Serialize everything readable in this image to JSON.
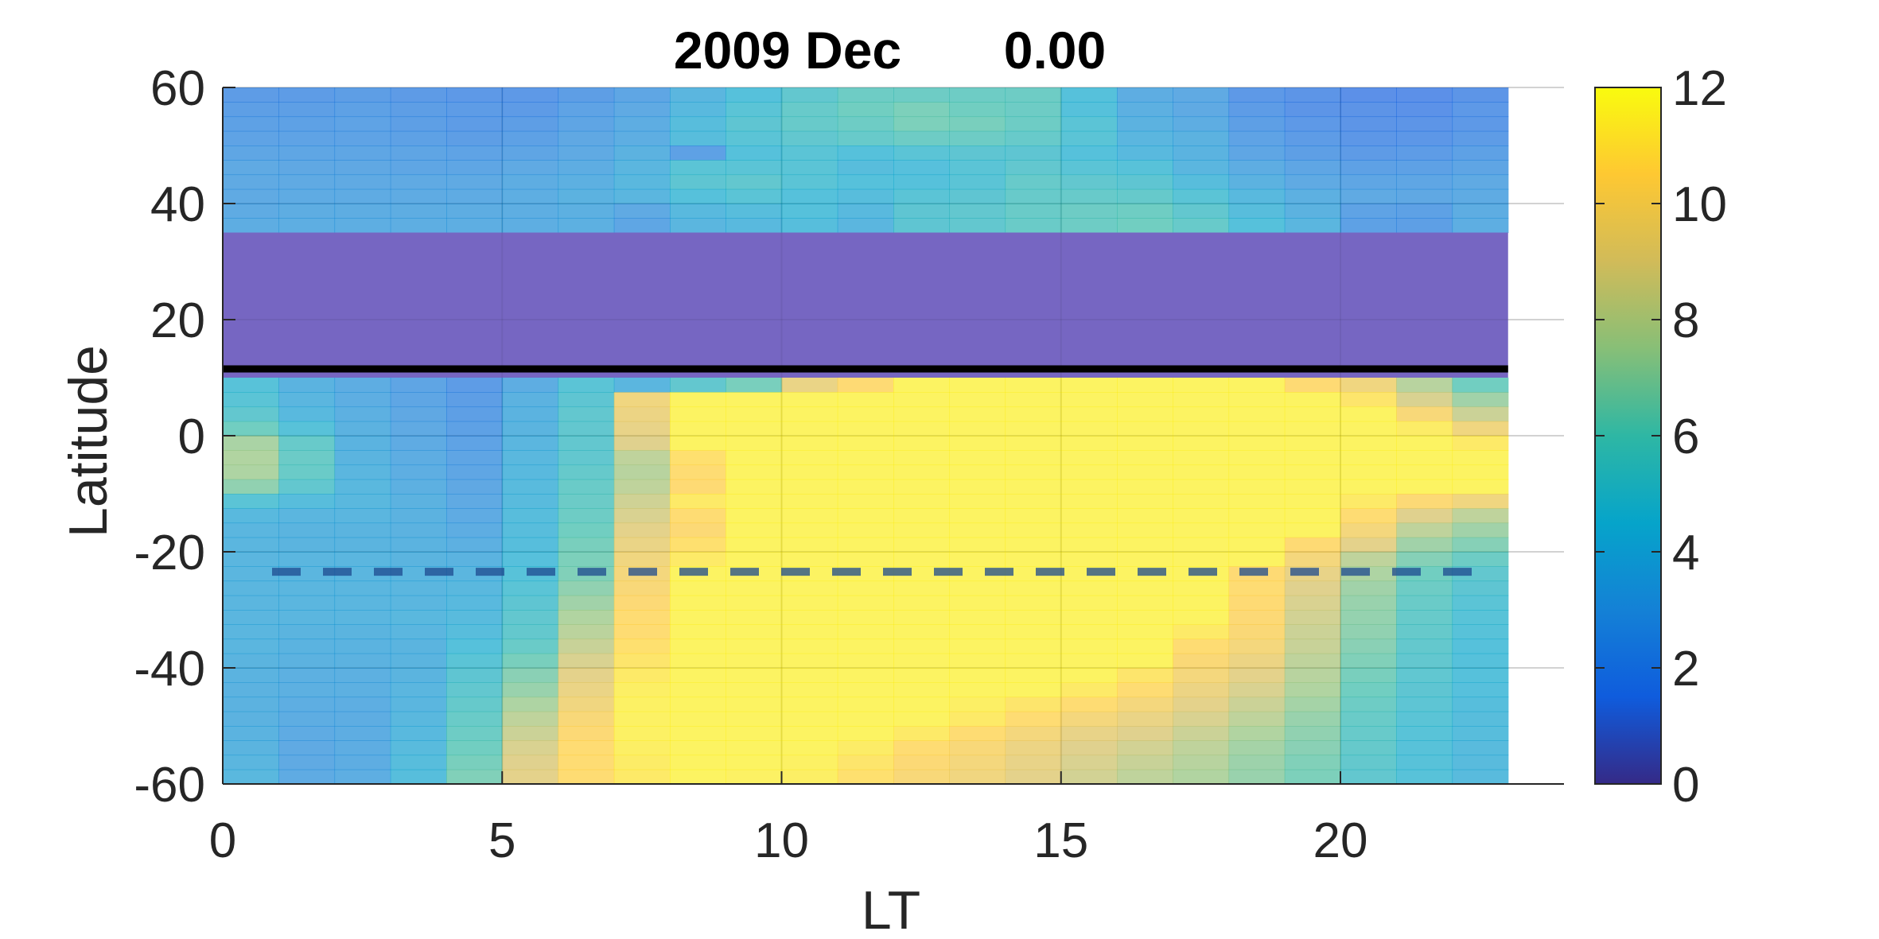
{
  "chart_data": {
    "type": "heatmap",
    "title_year_month": "2009 Dec",
    "title_value": "0.00",
    "xlabel": "LT",
    "ylabel": "Latitude",
    "xlim": [
      0,
      24
    ],
    "ylim": [
      -60,
      60
    ],
    "x_ticks": [
      "0",
      "5",
      "10",
      "15",
      "20"
    ],
    "y_ticks": [
      "60",
      "40",
      "20",
      "0",
      "-20",
      "-40",
      "-60"
    ],
    "colorbar": {
      "min": 0,
      "max": 12,
      "ticks": [
        "12",
        "10",
        "8",
        "6",
        "4",
        "2",
        "0"
      ],
      "colormap": "parula"
    },
    "grid": true,
    "cell_size": {
      "lt_hours": 1,
      "lat_degrees": 2.5
    },
    "masked_band": {
      "lat_from": 10,
      "lat_to": 35,
      "color": "#7666c2"
    },
    "solid_line_latitude": 11.5,
    "dashed_line_latitude": -23.44,
    "north_rows": [
      {
        "lat_from": 57.5,
        "lat_to": 60,
        "values": [
          2.2,
          2.2,
          2.3,
          2.1,
          2.0,
          2.0,
          2.3,
          2.8,
          3.8,
          4.5,
          5.2,
          5.8,
          5.8,
          5.8,
          5.8,
          4.5,
          3.2,
          3.0,
          2.0,
          1.8,
          1.5,
          1.5,
          1.8
        ]
      },
      {
        "lat_from": 55,
        "lat_to": 57.5,
        "values": [
          2.4,
          2.4,
          2.5,
          2.3,
          2.2,
          2.1,
          2.6,
          3.0,
          4.0,
          4.8,
          5.5,
          6.0,
          6.3,
          6.0,
          5.8,
          4.5,
          3.4,
          3.0,
          2.2,
          1.8,
          1.7,
          1.6,
          2.0
        ]
      },
      {
        "lat_from": 52.5,
        "lat_to": 55,
        "values": [
          2.5,
          2.5,
          2.6,
          2.4,
          2.2,
          2.3,
          2.7,
          3.2,
          4.2,
          5.0,
          5.5,
          5.8,
          6.3,
          6.2,
          5.8,
          4.8,
          3.5,
          3.2,
          2.4,
          2.0,
          1.8,
          1.8,
          2.0
        ]
      },
      {
        "lat_from": 50,
        "lat_to": 52.5,
        "values": [
          2.6,
          2.6,
          2.6,
          2.5,
          2.3,
          2.5,
          2.9,
          3.3,
          4.2,
          4.8,
          5.2,
          5.5,
          5.8,
          5.8,
          5.5,
          4.8,
          3.8,
          3.5,
          2.6,
          2.2,
          1.9,
          1.9,
          2.2
        ]
      },
      {
        "lat_from": 47.5,
        "lat_to": 50,
        "values": [
          2.8,
          2.8,
          2.8,
          2.7,
          2.6,
          2.7,
          3.0,
          3.5,
          2.5,
          4.5,
          4.8,
          4.5,
          4.8,
          5.0,
          5.0,
          4.5,
          4.0,
          3.6,
          2.8,
          2.4,
          2.1,
          2.2,
          2.5
        ]
      },
      {
        "lat_from": 45,
        "lat_to": 47.5,
        "values": [
          3.0,
          2.9,
          2.9,
          2.8,
          2.8,
          3.0,
          3.2,
          3.8,
          4.8,
          4.8,
          4.8,
          4.2,
          4.4,
          4.8,
          5.2,
          4.8,
          4.6,
          3.8,
          3.2,
          2.8,
          2.5,
          2.5,
          2.7
        ]
      },
      {
        "lat_from": 42.5,
        "lat_to": 45,
        "values": [
          3.0,
          3.0,
          3.0,
          3.0,
          3.0,
          3.2,
          3.4,
          3.9,
          5.0,
          5.2,
          4.8,
          4.5,
          4.5,
          4.8,
          5.5,
          5.2,
          5.0,
          4.2,
          3.5,
          3.0,
          2.8,
          2.8,
          3.0
        ]
      },
      {
        "lat_from": 40,
        "lat_to": 42.5,
        "values": [
          3.0,
          3.1,
          3.1,
          3.1,
          3.1,
          3.3,
          3.5,
          3.8,
          4.5,
          4.8,
          4.5,
          4.2,
          4.8,
          5.0,
          5.5,
          5.5,
          5.4,
          4.8,
          4.0,
          3.4,
          3.0,
          2.9,
          3.1
        ]
      },
      {
        "lat_from": 37.5,
        "lat_to": 40,
        "values": [
          3.1,
          3.2,
          3.2,
          3.2,
          3.2,
          3.3,
          3.4,
          3.0,
          4.0,
          4.2,
          4.5,
          4.0,
          5.0,
          5.2,
          5.6,
          5.8,
          5.9,
          5.2,
          4.2,
          3.5,
          2.6,
          2.5,
          3.2
        ]
      },
      {
        "lat_from": 35,
        "lat_to": 37.5,
        "values": [
          3.2,
          3.3,
          3.3,
          3.3,
          3.3,
          3.3,
          3.4,
          2.8,
          3.8,
          4.0,
          4.3,
          3.8,
          5.0,
          5.2,
          5.6,
          5.8,
          6.0,
          5.5,
          4.5,
          3.8,
          2.5,
          2.4,
          3.3
        ]
      }
    ],
    "south_rows": [
      {
        "lat_from": 7.5,
        "lat_to": 10,
        "values": [
          4.6,
          3.6,
          3.2,
          2.7,
          2.2,
          3.2,
          4.8,
          3.8,
          5.2,
          6.2,
          9.5,
          10.5,
          11.6,
          11.6,
          11.6,
          11.6,
          11.6,
          11.6,
          11.6,
          10.5,
          9.8,
          7.8,
          6.0
        ]
      },
      {
        "lat_from": 5,
        "lat_to": 7.5,
        "values": [
          4.8,
          3.8,
          3.3,
          2.8,
          2.3,
          3.5,
          5.0,
          9.8,
          11.6,
          11.6,
          11.6,
          11.6,
          11.6,
          11.6,
          11.6,
          11.6,
          11.6,
          11.6,
          11.6,
          11.6,
          11.0,
          8.8,
          7.2
        ]
      },
      {
        "lat_from": 2.5,
        "lat_to": 5,
        "values": [
          5.2,
          4.0,
          3.4,
          2.9,
          2.4,
          3.6,
          5.2,
          9.6,
          11.6,
          11.6,
          11.6,
          11.6,
          11.6,
          11.6,
          11.6,
          11.6,
          11.6,
          11.6,
          11.6,
          11.6,
          11.6,
          10.2,
          8.4
        ]
      },
      {
        "lat_from": 0,
        "lat_to": 2.5,
        "values": [
          6.0,
          4.6,
          3.5,
          3.0,
          2.5,
          3.7,
          5.2,
          9.4,
          11.6,
          11.6,
          11.6,
          11.6,
          11.6,
          11.6,
          11.6,
          11.6,
          11.6,
          11.6,
          11.6,
          11.6,
          11.6,
          11.3,
          9.8
        ]
      },
      {
        "lat_from": -2.5,
        "lat_to": 0,
        "values": [
          7.4,
          5.5,
          3.6,
          3.1,
          2.6,
          3.8,
          5.2,
          9.0,
          11.6,
          11.6,
          11.6,
          11.6,
          11.6,
          11.6,
          11.6,
          11.6,
          11.6,
          11.6,
          11.6,
          11.6,
          11.6,
          11.6,
          11.2
        ]
      },
      {
        "lat_from": -5,
        "lat_to": -2.5,
        "values": [
          7.6,
          5.7,
          3.7,
          3.2,
          2.7,
          3.9,
          5.2,
          8.0,
          10.8,
          11.6,
          11.6,
          11.6,
          11.6,
          11.6,
          11.6,
          11.6,
          11.6,
          11.6,
          11.6,
          11.6,
          11.6,
          11.6,
          11.6
        ]
      },
      {
        "lat_from": -7.5,
        "lat_to": -5,
        "values": [
          7.5,
          5.6,
          3.8,
          3.3,
          2.8,
          4.0,
          5.4,
          7.8,
          10.6,
          11.6,
          11.6,
          11.6,
          11.6,
          11.6,
          11.6,
          11.6,
          11.6,
          11.6,
          11.6,
          11.6,
          11.6,
          11.6,
          11.6
        ]
      },
      {
        "lat_from": -10,
        "lat_to": -7.5,
        "values": [
          6.8,
          5.2,
          3.9,
          3.4,
          2.9,
          4.1,
          5.6,
          8.0,
          10.5,
          11.6,
          11.6,
          11.6,
          11.6,
          11.6,
          11.6,
          11.6,
          11.6,
          11.6,
          11.6,
          11.6,
          11.6,
          11.6,
          11.6
        ]
      },
      {
        "lat_from": -12.5,
        "lat_to": -10,
        "values": [
          4.8,
          4.2,
          3.9,
          3.5,
          3.0,
          4.1,
          5.7,
          8.5,
          11.2,
          11.6,
          11.6,
          11.6,
          11.6,
          11.6,
          11.6,
          11.6,
          11.6,
          11.6,
          11.6,
          11.6,
          11.2,
          10.4,
          9.8
        ]
      },
      {
        "lat_from": -15,
        "lat_to": -12.5,
        "values": [
          4.0,
          3.8,
          3.8,
          3.5,
          3.1,
          4.2,
          5.8,
          8.8,
          10.6,
          11.6,
          11.6,
          11.6,
          11.6,
          11.6,
          11.6,
          11.6,
          11.6,
          11.6,
          11.6,
          11.6,
          10.6,
          9.0,
          8.0
        ]
      },
      {
        "lat_from": -17.5,
        "lat_to": -15,
        "values": [
          3.8,
          3.7,
          3.7,
          3.5,
          3.2,
          4.2,
          6.0,
          9.2,
          10.4,
          11.6,
          11.6,
          11.6,
          11.6,
          11.6,
          11.6,
          11.6,
          11.6,
          11.6,
          11.6,
          11.6,
          10.0,
          8.0,
          7.2
        ]
      },
      {
        "lat_from": -20,
        "lat_to": -17.5,
        "values": [
          3.8,
          3.7,
          3.7,
          3.6,
          3.4,
          4.3,
          6.2,
          9.5,
          10.8,
          11.6,
          11.6,
          11.6,
          11.6,
          11.6,
          11.6,
          11.6,
          11.6,
          11.6,
          11.6,
          10.5,
          9.2,
          7.2,
          6.5
        ]
      },
      {
        "lat_from": -22.5,
        "lat_to": -20,
        "values": [
          3.8,
          3.8,
          3.8,
          3.7,
          3.6,
          4.4,
          6.3,
          9.8,
          11.2,
          11.6,
          11.6,
          11.6,
          11.6,
          11.6,
          11.6,
          11.6,
          11.6,
          11.6,
          11.6,
          10.0,
          8.0,
          6.5,
          5.8
        ]
      },
      {
        "lat_from": -25,
        "lat_to": -22.5,
        "values": [
          3.8,
          3.8,
          3.8,
          3.8,
          3.8,
          4.6,
          6.4,
          10.0,
          11.6,
          11.6,
          11.6,
          11.6,
          11.6,
          11.6,
          11.6,
          11.6,
          11.6,
          11.6,
          10.5,
          9.4,
          7.5,
          6.0,
          5.2
        ]
      },
      {
        "lat_from": -27.5,
        "lat_to": -25,
        "values": [
          3.8,
          3.8,
          3.8,
          3.8,
          3.9,
          4.8,
          6.8,
          10.2,
          11.6,
          11.6,
          11.6,
          11.6,
          11.6,
          11.6,
          11.6,
          11.6,
          11.6,
          11.6,
          10.6,
          9.0,
          7.2,
          5.8,
          5.0
        ]
      },
      {
        "lat_from": -30,
        "lat_to": -27.5,
        "values": [
          3.8,
          3.8,
          3.8,
          3.8,
          4.0,
          5.0,
          7.2,
          10.4,
          11.6,
          11.6,
          11.6,
          11.6,
          11.6,
          11.6,
          11.6,
          11.6,
          11.6,
          11.6,
          10.5,
          8.8,
          7.0,
          5.6,
          4.8
        ]
      },
      {
        "lat_from": -32.5,
        "lat_to": -30,
        "values": [
          3.8,
          3.8,
          3.8,
          3.9,
          4.1,
          5.2,
          7.6,
          10.6,
          11.6,
          11.6,
          11.6,
          11.6,
          11.6,
          11.6,
          11.6,
          11.6,
          11.6,
          11.6,
          10.4,
          8.6,
          6.9,
          5.5,
          4.7
        ]
      },
      {
        "lat_from": -35,
        "lat_to": -32.5,
        "values": [
          3.8,
          3.7,
          3.7,
          3.8,
          4.2,
          5.3,
          7.9,
          10.6,
          11.6,
          11.6,
          11.6,
          11.6,
          11.6,
          11.6,
          11.6,
          11.6,
          11.6,
          11.2,
          10.3,
          8.4,
          6.8,
          5.4,
          4.6
        ]
      },
      {
        "lat_from": -37.5,
        "lat_to": -35,
        "values": [
          3.8,
          3.6,
          3.6,
          3.7,
          4.5,
          5.6,
          8.3,
          10.8,
          11.6,
          11.6,
          11.6,
          11.6,
          11.6,
          11.6,
          11.6,
          11.6,
          11.6,
          10.6,
          10.0,
          8.3,
          6.6,
          5.3,
          4.5
        ]
      },
      {
        "lat_from": -40,
        "lat_to": -37.5,
        "values": [
          3.7,
          3.5,
          3.5,
          3.7,
          4.8,
          6.2,
          8.8,
          11.0,
          11.6,
          11.6,
          11.6,
          11.6,
          11.6,
          11.6,
          11.6,
          11.6,
          11.6,
          10.3,
          9.6,
          8.0,
          6.4,
          5.2,
          4.5
        ]
      },
      {
        "lat_from": -42.5,
        "lat_to": -40,
        "values": [
          3.6,
          3.4,
          3.4,
          3.7,
          5.0,
          6.6,
          9.2,
          11.2,
          11.6,
          11.6,
          11.6,
          11.6,
          11.6,
          11.6,
          11.6,
          11.6,
          11.0,
          10.0,
          9.2,
          7.8,
          6.2,
          5.1,
          4.5
        ]
      },
      {
        "lat_from": -45,
        "lat_to": -42.5,
        "values": [
          3.5,
          3.4,
          3.4,
          3.8,
          5.2,
          7.0,
          9.5,
          11.4,
          11.6,
          11.6,
          11.6,
          11.6,
          11.6,
          11.6,
          11.6,
          11.2,
          10.6,
          9.6,
          8.8,
          7.6,
          6.0,
          5.0,
          4.4
        ]
      },
      {
        "lat_from": -47.5,
        "lat_to": -45,
        "values": [
          3.5,
          3.3,
          3.3,
          3.8,
          5.4,
          7.5,
          9.8,
          11.5,
          11.6,
          11.6,
          11.6,
          11.6,
          11.6,
          11.4,
          11.0,
          10.6,
          10.0,
          9.2,
          8.4,
          7.3,
          5.8,
          4.9,
          4.3
        ]
      },
      {
        "lat_from": -50,
        "lat_to": -47.5,
        "values": [
          3.5,
          3.2,
          3.2,
          3.9,
          5.6,
          8.0,
          10.2,
          11.5,
          11.6,
          11.6,
          11.6,
          11.6,
          11.6,
          11.2,
          10.6,
          10.0,
          9.5,
          8.8,
          8.0,
          7.0,
          5.6,
          4.8,
          4.2
        ]
      },
      {
        "lat_from": -52.5,
        "lat_to": -50,
        "values": [
          3.6,
          3.1,
          3.2,
          4.0,
          5.8,
          8.4,
          10.4,
          11.5,
          11.6,
          11.6,
          11.6,
          11.6,
          11.2,
          10.6,
          10.0,
          9.4,
          9.0,
          8.4,
          7.6,
          6.8,
          5.5,
          4.7,
          4.2
        ]
      },
      {
        "lat_from": -55,
        "lat_to": -52.5,
        "values": [
          3.7,
          3.0,
          3.2,
          4.1,
          6.0,
          8.8,
          10.6,
          11.4,
          11.6,
          11.6,
          11.6,
          11.3,
          10.6,
          10.2,
          9.6,
          9.0,
          8.6,
          8.0,
          7.3,
          6.6,
          5.4,
          4.6,
          4.1
        ]
      },
      {
        "lat_from": -57.5,
        "lat_to": -55,
        "values": [
          3.8,
          3.0,
          3.2,
          4.2,
          6.2,
          9.0,
          10.6,
          11.3,
          11.6,
          11.6,
          11.5,
          11.0,
          10.4,
          10.0,
          9.4,
          8.8,
          8.3,
          7.8,
          7.1,
          6.4,
          5.3,
          4.6,
          4.1
        ]
      },
      {
        "lat_from": -60,
        "lat_to": -57.5,
        "values": [
          3.9,
          3.1,
          3.3,
          4.3,
          6.4,
          9.2,
          10.6,
          11.2,
          11.6,
          11.5,
          11.4,
          10.8,
          10.2,
          9.8,
          9.2,
          8.6,
          8.0,
          7.6,
          7.0,
          6.3,
          5.2,
          4.6,
          4.1
        ]
      }
    ]
  }
}
